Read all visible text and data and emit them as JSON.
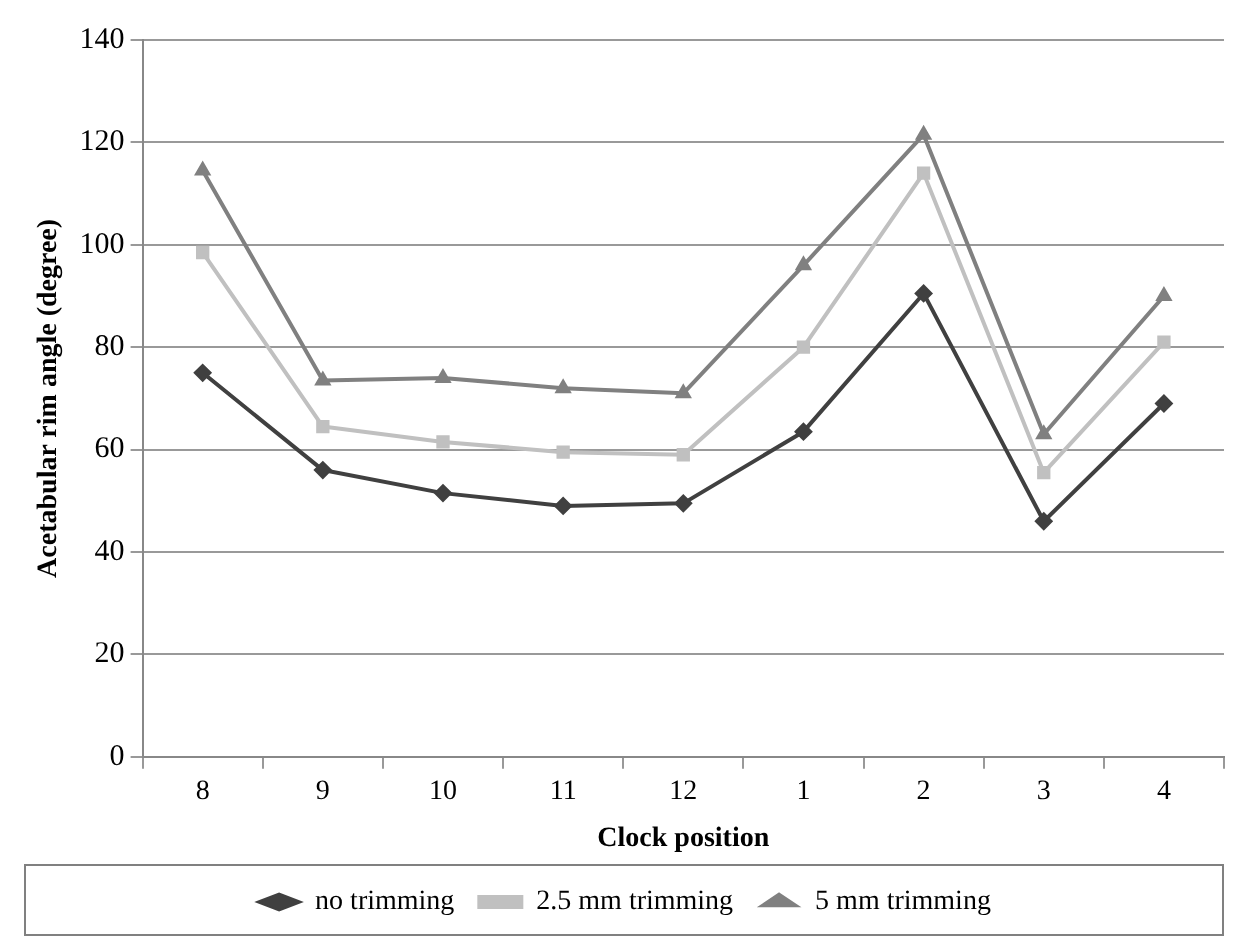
{
  "chart_data": {
    "type": "line",
    "xlabel": "Clock position",
    "ylabel": "Acetabular rim angle (degree)",
    "categories": [
      "8",
      "9",
      "10",
      "11",
      "12",
      "1",
      "2",
      "3",
      "4"
    ],
    "series": [
      {
        "name": "no trimming",
        "color": "#404040",
        "marker": "diamond",
        "values": [
          75,
          56,
          51.5,
          49,
          49.5,
          63.5,
          90.5,
          46,
          69
        ]
      },
      {
        "name": "2.5 mm trimming",
        "color": "#c0c0c0",
        "marker": "square",
        "values": [
          98.5,
          64.5,
          61.5,
          59.5,
          59,
          80,
          114,
          55.5,
          81
        ]
      },
      {
        "name": "5 mm trimming",
        "color": "#808080",
        "marker": "triangle",
        "values": [
          114.5,
          73.5,
          74,
          72,
          71,
          96,
          121.5,
          63,
          90
        ]
      }
    ],
    "ylim": [
      0,
      140
    ],
    "yticks": [
      0,
      20,
      40,
      60,
      80,
      100,
      120,
      140
    ],
    "grid": "y",
    "legend": "bottom",
    "line_style": "solid"
  }
}
